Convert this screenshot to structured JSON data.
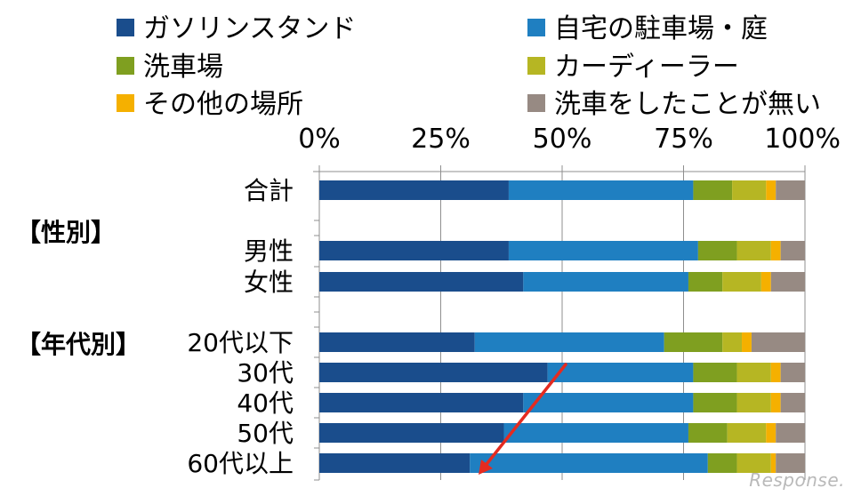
{
  "chart_data": {
    "type": "bar",
    "orientation": "horizontal",
    "stacked": "percent",
    "legend_position": "top",
    "x_ticks": [
      "0%",
      "25%",
      "50%",
      "75%",
      "100%"
    ],
    "xlim": [
      0,
      100
    ],
    "categories": [
      "合計",
      "男性",
      "女性",
      "20代以下",
      "30代",
      "40代",
      "50代",
      "60代以上"
    ],
    "groups": [
      {
        "label": "【性別】",
        "before_category": "男性"
      },
      {
        "label": "【年代別】",
        "before_category": "20代以下"
      }
    ],
    "series": [
      {
        "name": "ガソリンスタンド",
        "color": "#1a4d8c",
        "values": [
          39,
          39,
          42,
          32,
          47,
          42,
          38,
          31
        ]
      },
      {
        "name": "自宅の駐車場・庭",
        "color": "#1f7fc1",
        "values": [
          38,
          39,
          34,
          39,
          30,
          35,
          38,
          49
        ]
      },
      {
        "name": "洗車場",
        "color": "#7f9f20",
        "values": [
          8,
          8,
          7,
          12,
          9,
          9,
          8,
          6
        ]
      },
      {
        "name": "カーディーラー",
        "color": "#b6b623",
        "values": [
          7,
          7,
          8,
          4,
          7,
          7,
          8,
          7
        ]
      },
      {
        "name": "その他の場所",
        "color": "#f5b000",
        "values": [
          2,
          2,
          2,
          2,
          2,
          2,
          2,
          1
        ]
      },
      {
        "name": "洗車をしたことが無い",
        "color": "#978a83",
        "values": [
          6,
          5,
          7,
          11,
          5,
          5,
          6,
          6
        ]
      }
    ],
    "annotation": {
      "type": "arrow",
      "color": "#e52b20",
      "description": "trend arrow from 30代 down to 60代以上"
    }
  },
  "watermark": "Response."
}
